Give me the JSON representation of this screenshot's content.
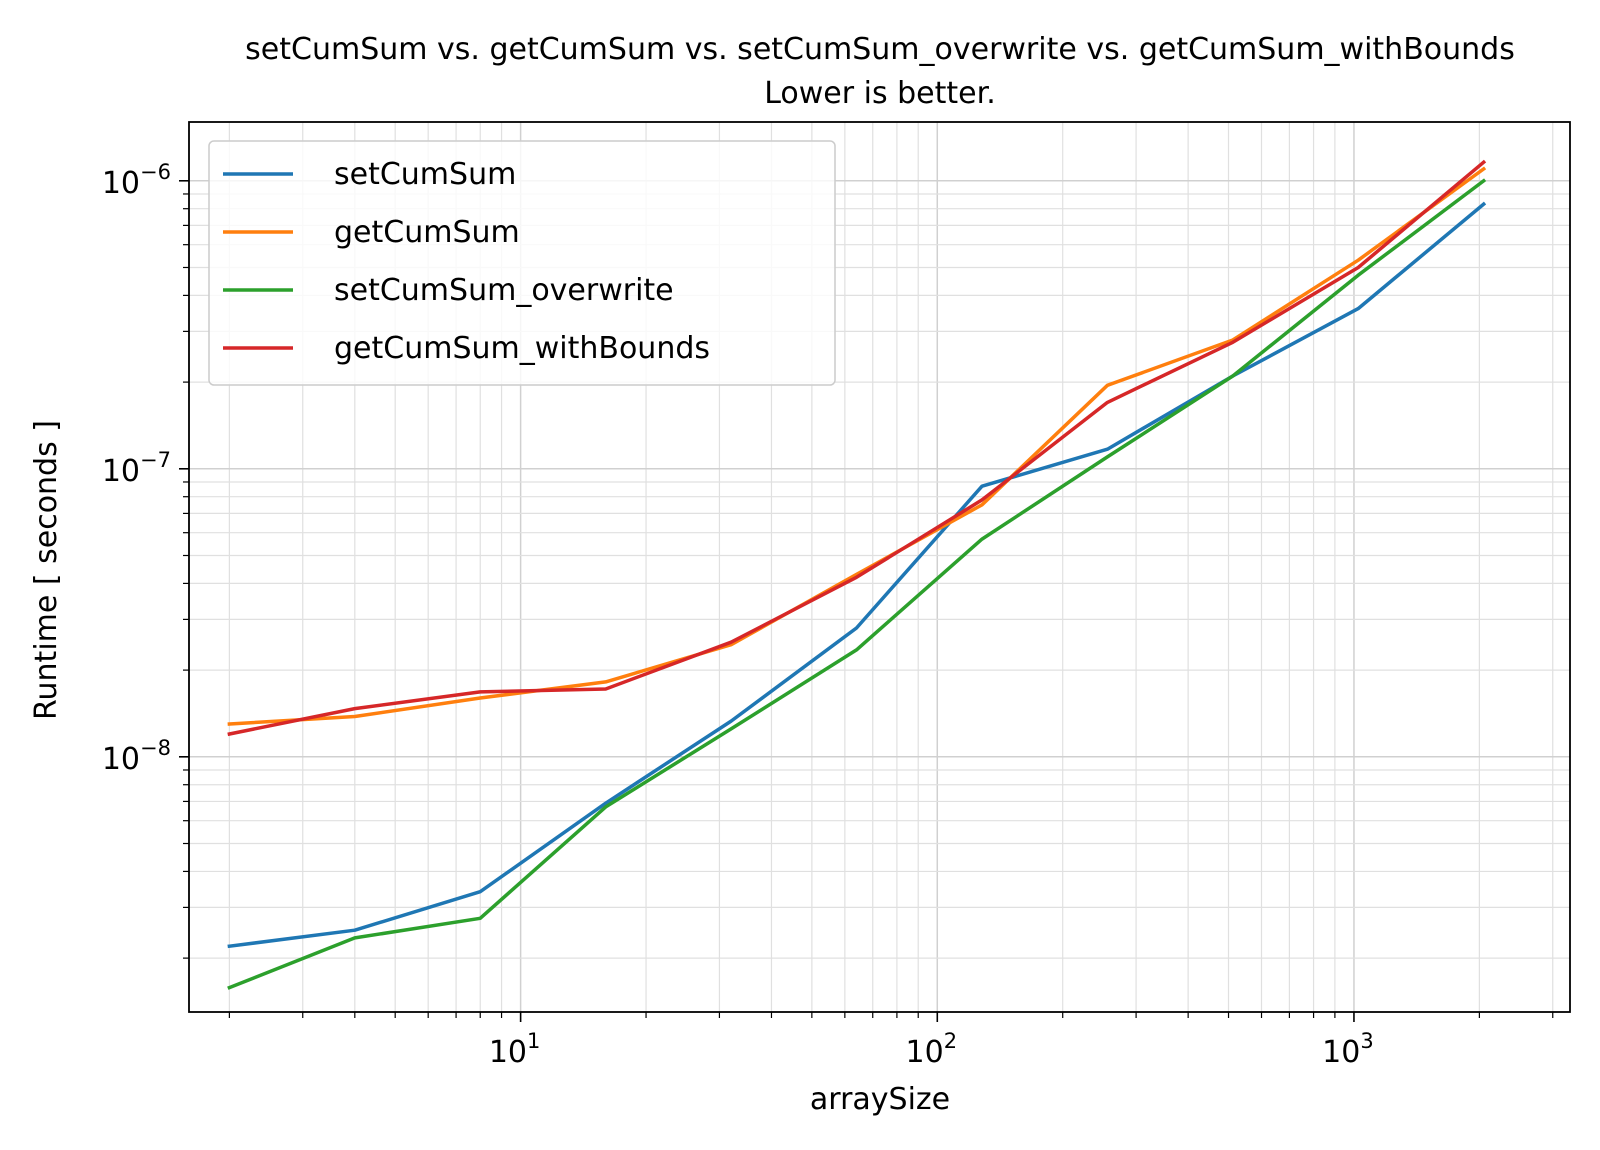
{
  "chart_data": {
    "type": "line",
    "title": "setCumSum vs. getCumSum vs. setCumSum_overwrite vs. getCumSum_withBounds",
    "subtitle": "Lower is better.",
    "xlabel": "arraySize",
    "ylabel": "Runtime [ seconds ]",
    "xscale": "log",
    "yscale": "log",
    "xlim": [
      1.6,
      3300
    ],
    "ylim": [
      1.3e-09,
      1.6e-06
    ],
    "grid": "major and minor",
    "legend_position": "top-left",
    "x_ticks": [
      {
        "value": 10,
        "base": "10",
        "exp": "1"
      },
      {
        "value": 100,
        "base": "10",
        "exp": "2"
      },
      {
        "value": 1000,
        "base": "10",
        "exp": "3"
      }
    ],
    "y_ticks": [
      {
        "value": 1e-08,
        "base": "10",
        "exp": "−8"
      },
      {
        "value": 1e-07,
        "base": "10",
        "exp": "−7"
      },
      {
        "value": 1e-06,
        "base": "10",
        "exp": "−6"
      }
    ],
    "x": [
      2,
      4,
      8,
      16,
      32,
      64,
      128,
      256,
      512,
      1024,
      2048
    ],
    "series": [
      {
        "name": "setCumSum",
        "color": "#1f77b4",
        "values": [
          2.2e-09,
          2.5e-09,
          3.4e-09,
          6.9e-09,
          1.33e-08,
          2.8e-08,
          8.7e-08,
          1.17e-07,
          2.1e-07,
          3.6e-07,
          8.3e-07
        ]
      },
      {
        "name": "getCumSum",
        "color": "#ff7f0e",
        "values": [
          1.3e-08,
          1.38e-08,
          1.6e-08,
          1.82e-08,
          2.45e-08,
          4.3e-08,
          7.5e-08,
          1.95e-07,
          2.8e-07,
          5.3e-07,
          1.1e-06
        ]
      },
      {
        "name": "setCumSum_overwrite",
        "color": "#2ca02c",
        "values": [
          1.58e-09,
          2.35e-09,
          2.75e-09,
          6.7e-09,
          1.25e-08,
          2.35e-08,
          5.7e-08,
          1.1e-07,
          2.1e-07,
          4.7e-07,
          1e-06
        ]
      },
      {
        "name": "getCumSum_withBounds",
        "color": "#d62728",
        "values": [
          1.2e-08,
          1.47e-08,
          1.68e-08,
          1.72e-08,
          2.5e-08,
          4.2e-08,
          7.8e-08,
          1.7e-07,
          2.75e-07,
          5e-07,
          1.16e-06
        ]
      }
    ]
  }
}
